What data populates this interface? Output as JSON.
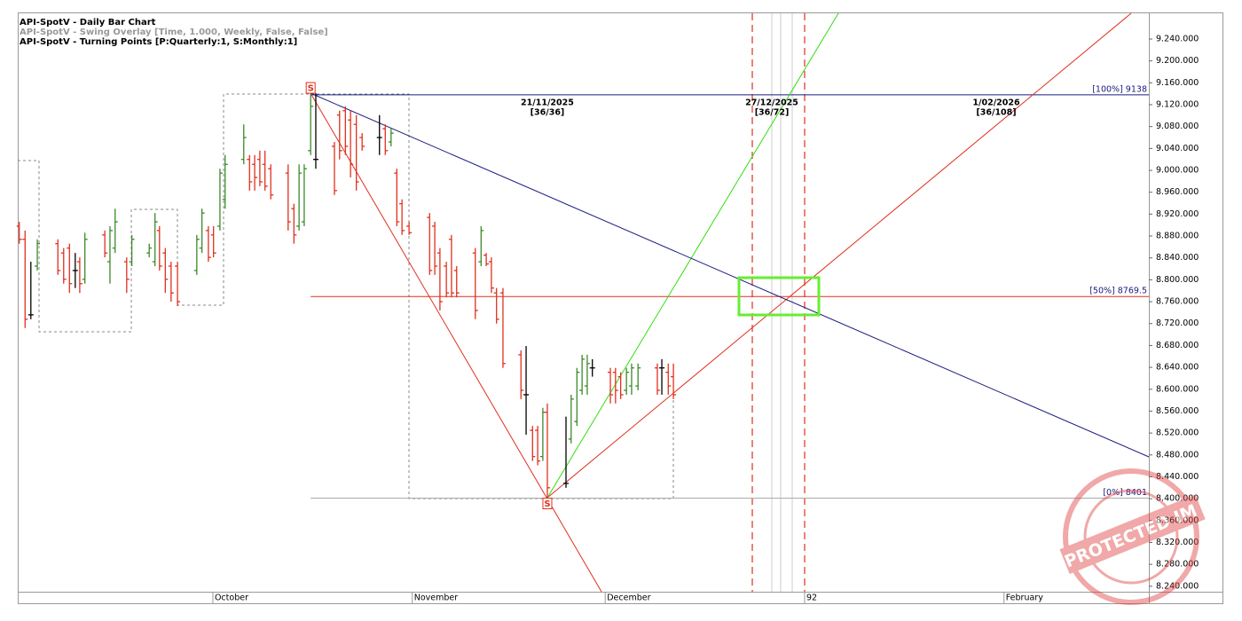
{
  "chart_data": {
    "type": "ohlc",
    "title": "API-SpotV - Daily Bar Chart",
    "subtitle": "API-SpotV - Swing Overlay [Time, 1.000, Weekly, False, False]",
    "subtitle2": "API-SpotV - Turning Points [P:Quarterly:1, S:Monthly:1]",
    "x": [
      -30.1,
      -29.2,
      -28.3,
      -27.3,
      -24.1,
      -23.2,
      -22.3,
      -21.4,
      -20.7,
      -19.9,
      -16.8,
      -16,
      -15.2,
      -13.4,
      -12.6,
      -9.9,
      -9,
      -8.3,
      -7.4,
      -6.5,
      -5.5,
      -2.5,
      -1.7,
      -0.7,
      0.1,
      1.1,
      1.9,
      4.8,
      5.7,
      6.5,
      7.3,
      8.1,
      9,
      11.7,
      12.6,
      13.4,
      14.2,
      15.2,
      16,
      18.9,
      19.7,
      20.6,
      21.4,
      22.3,
      23.2,
      25.9,
      26.8,
      27.7,
      28.6,
      29.4,
      30.5,
      33.7,
      34.5,
      35.3,
      36.3,
      37.1,
      37.9,
      40.8,
      41.7,
      42.5,
      43.3,
      44.1,
      45.1,
      47.9,
      48.7,
      49.7,
      50.5,
      51.3,
      52,
      54.9,
      55.7,
      56.6,
      57.4,
      58.2,
      59,
      61.8,
      62.6,
      63.4,
      64.3,
      65.1,
      66.1,
      69.1,
      69.8,
      70.8,
      71.6
    ],
    "open": [
      8898,
      8874,
      8736,
      8825,
      8866,
      8849,
      8858,
      8817,
      8833,
      8801,
      8882,
      8833,
      8858,
      8833,
      8833,
      8849,
      8833,
      8890,
      8849,
      8825,
      8825,
      8817,
      8858,
      8890,
      8882,
      8898,
      8947,
      9020,
      9020,
      9011,
      9020,
      9011,
      9003,
      8995,
      8930,
      8898,
      8906,
      9036,
      9020,
      9044,
      9101,
      9109,
      9092,
      9084,
      9060,
      9060,
      9076,
      9052,
      8995,
      8939,
      8898,
      8914,
      8898,
      8849,
      8825,
      8874,
      8817,
      8849,
      8833,
      8845,
      8833,
      8776,
      8776,
      8663,
      8590,
      8525,
      8525,
      8477,
      8558,
      8428,
      8509,
      8541,
      8598,
      8606,
      8639,
      8631,
      8631,
      8623,
      8598,
      8606,
      8606,
      8639,
      8639,
      8631,
      8623
    ],
    "high": [
      8906,
      8890,
      8833,
      8874,
      8874,
      8858,
      8866,
      8849,
      8841,
      8886,
      8890,
      8898,
      8930,
      8841,
      8882,
      8866,
      8922,
      8898,
      8858,
      8833,
      8833,
      8882,
      8930,
      8898,
      8898,
      9003,
      9028,
      9084,
      9028,
      9028,
      9036,
      9036,
      9011,
      9011,
      8939,
      9011,
      9011,
      9141,
      9141,
      9052,
      9109,
      9117,
      9109,
      9101,
      9068,
      9101,
      9084,
      9076,
      9003,
      8947,
      8906,
      8922,
      8906,
      8858,
      8833,
      8882,
      8825,
      8858,
      8898,
      8849,
      8841,
      8785,
      8785,
      8671,
      8679,
      8533,
      8533,
      8566,
      8574,
      8550,
      8590,
      8639,
      8663,
      8663,
      8655,
      8639,
      8639,
      8631,
      8639,
      8647,
      8647,
      8647,
      8655,
      8647,
      8647
    ],
    "low": [
      8866,
      8712,
      8728,
      8817,
      8809,
      8793,
      8776,
      8785,
      8776,
      8793,
      8841,
      8793,
      8849,
      8776,
      8825,
      8841,
      8825,
      8817,
      8776,
      8760,
      8752,
      8809,
      8849,
      8833,
      8841,
      8890,
      8930,
      9011,
      8963,
      8963,
      8971,
      8963,
      8947,
      8890,
      8866,
      8890,
      8898,
      9028,
      9003,
      8955,
      9020,
      9028,
      8987,
      8963,
      9036,
      9028,
      9028,
      9044,
      8898,
      8882,
      8882,
      8809,
      8809,
      8744,
      8768,
      8768,
      8768,
      8728,
      8825,
      8825,
      8776,
      8720,
      8639,
      8582,
      8517,
      8469,
      8461,
      8469,
      8401,
      8420,
      8501,
      8533,
      8590,
      8590,
      8623,
      8574,
      8574,
      8582,
      8590,
      8590,
      8598,
      8590,
      8590,
      8590,
      8582
    ],
    "close": [
      8874,
      8728,
      8736,
      8866,
      8817,
      8801,
      8793,
      8817,
      8793,
      8874,
      8849,
      8890,
      8906,
      8801,
      8874,
      8858,
      8906,
      8825,
      8801,
      8776,
      8760,
      8874,
      8922,
      8841,
      8849,
      8995,
      9011,
      9060,
      8979,
      8987,
      8979,
      8971,
      8955,
      8906,
      8882,
      8995,
      9003,
      9117,
      9020,
      8963,
      9036,
      9044,
      9011,
      8979,
      9044,
      9060,
      9036,
      9068,
      8906,
      8890,
      8886,
      8817,
      8825,
      8760,
      8776,
      8776,
      8776,
      8744,
      8890,
      8829,
      8785,
      8728,
      8647,
      8598,
      8590,
      8477,
      8469,
      8558,
      8420,
      8428,
      8582,
      8631,
      8655,
      8647,
      8639,
      8590,
      8598,
      8590,
      8631,
      8639,
      8639,
      8598,
      8639,
      8606,
      8590
    ],
    "up_color": "#3a8a2a",
    "down_color": "#e0301e",
    "flat_color": "#000000",
    "xlim": [
      -30.34,
      145.52
    ],
    "xticks": [
      {
        "value": 0,
        "label": "October"
      },
      {
        "value": 31,
        "label": "November"
      },
      {
        "value": 61,
        "label": "December"
      },
      92,
      {
        "value": 123,
        "label": "February"
      }
    ],
    "ylim": [
      8230,
      9287
    ],
    "yticks": [
      {
        "value": 8240,
        "label": "8.240.000"
      },
      {
        "value": 8280,
        "label": "8.280.000"
      },
      {
        "value": 8320,
        "label": "8.320.000"
      },
      {
        "value": 8360,
        "label": "8.360.000"
      },
      {
        "value": 8400,
        "label": "8.400.000"
      },
      {
        "value": 8440,
        "label": "8.440.000"
      },
      {
        "value": 8480,
        "label": "8.480.000"
      },
      {
        "value": 8520,
        "label": "8.520.000"
      },
      {
        "value": 8560,
        "label": "8.560.000"
      },
      {
        "value": 8600,
        "label": "8.600.000"
      },
      {
        "value": 8640,
        "label": "8.640.000"
      },
      {
        "value": 8680,
        "label": "8.680.000"
      },
      {
        "value": 8720,
        "label": "8.720.000"
      },
      {
        "value": 8760,
        "label": "8.760.000"
      },
      {
        "value": 8800,
        "label": "8.800.000"
      },
      {
        "value": 8840,
        "label": "8.840.000"
      },
      {
        "value": 8880,
        "label": "8.880.000"
      },
      {
        "value": 8920,
        "label": "8.920.000"
      },
      {
        "value": 8960,
        "label": "8.960.000"
      },
      {
        "value": 9000,
        "label": "9.000.000"
      },
      {
        "value": 9040,
        "label": "9.040.000"
      },
      {
        "value": 9080,
        "label": "9.080.000"
      },
      {
        "value": 9120,
        "label": "9.120.000"
      },
      {
        "value": 9160,
        "label": "9.160.000"
      },
      {
        "value": 9200,
        "label": "9.200.000"
      },
      {
        "value": 9240,
        "label": "9.240.000"
      }
    ],
    "levels": [
      {
        "value": 9138,
        "label": "[100%] 9138",
        "color": "#1a1a80"
      },
      {
        "value": 8769.5,
        "label": "[50%] 8769.5",
        "color": "#e0301e"
      },
      {
        "value": 8401,
        "label": "[0%] 8401",
        "color": "#aaaaaa"
      }
    ],
    "swing_points": [
      {
        "x": 15.2,
        "value": 9141,
        "label": "S",
        "side": "above"
      },
      {
        "x": 52,
        "value": 8401,
        "label": "S",
        "side": "below"
      }
    ],
    "annotations": [
      {
        "x": 52,
        "date": "21/11/2025",
        "count": "[36/36]"
      },
      {
        "x": 86.9,
        "date": "27/12/2025",
        "count": "[36/72]"
      },
      {
        "x": 121.8,
        "date": "1/02/2026",
        "count": "[36/108]"
      }
    ],
    "stamp": "PROTECTED IM"
  }
}
